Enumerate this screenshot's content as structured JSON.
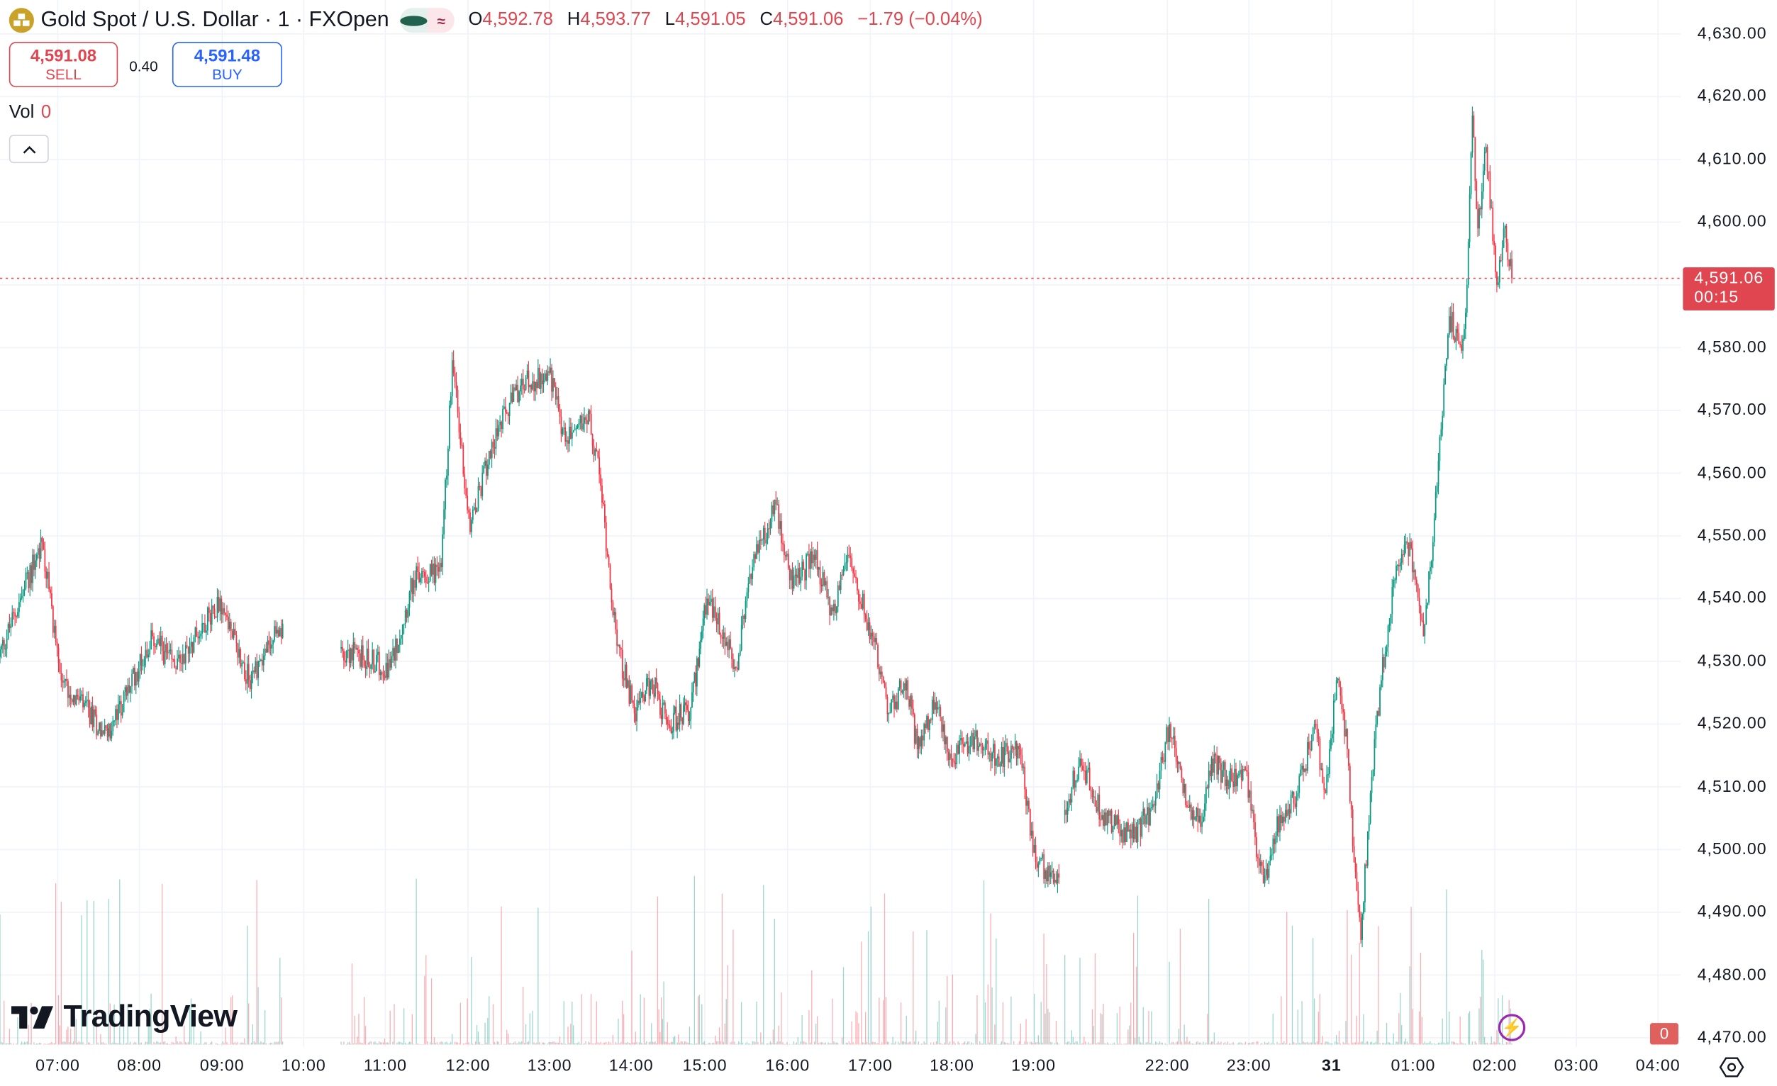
{
  "header": {
    "title": "Gold Spot / U.S. Dollar · 1 · FXOpen",
    "logo_icon": "gold-bars-icon",
    "status_icons": [
      "market-open-dot-icon",
      "delayed-data-icon"
    ],
    "ohlc": {
      "o_label": "O",
      "o": "4,592.78",
      "h_label": "H",
      "h": "4,593.77",
      "l_label": "L",
      "l": "4,591.05",
      "c_label": "C",
      "c": "4,591.06",
      "change": "−1.79 (−0.04%)"
    }
  },
  "trade": {
    "sell_price": "4,591.08",
    "sell_label": "SELL",
    "spread": "0.40",
    "buy_price": "4,591.48",
    "buy_label": "BUY"
  },
  "volume_legend": {
    "label": "Vol",
    "value": "0"
  },
  "branding": {
    "logo_text": "TradingView"
  },
  "colors": {
    "up": "#089981",
    "down": "#f23645",
    "accent_sell": "#e0464f",
    "accent_buy": "#2962ff",
    "logo": "#c9a227"
  },
  "chart_data": {
    "type": "candlestick",
    "symbol": "Gold Spot / U.S. Dollar",
    "interval": "1",
    "ylim": [
      4470,
      4630
    ],
    "grid": true,
    "y_ticks": [
      "4,630.00",
      "4,620.00",
      "4,610.00",
      "4,600.00",
      "4,590.00",
      "4,580.00",
      "4,570.00",
      "4,560.00",
      "4,550.00",
      "4,540.00",
      "4,530.00",
      "4,520.00",
      "4,510.00",
      "4,500.00",
      "4,490.00",
      "4,480.00",
      "4,470.00"
    ],
    "x_ticks": [
      "07:00",
      "08:00",
      "09:00",
      "10:00",
      "11:00",
      "12:00",
      "13:00",
      "14:00",
      "15:00",
      "16:00",
      "17:00",
      "18:00",
      "19:00",
      "22:00",
      "23:00",
      "31",
      "01:00",
      "02:00",
      "03:00",
      "04:00"
    ],
    "last_price": "4,591.06",
    "countdown": "00:15",
    "volume_last": "0",
    "price_path": [
      [
        "06:17",
        4530.7
      ],
      [
        "06:36",
        4541.6
      ],
      [
        "06:49",
        4549
      ],
      [
        "07:03",
        4527
      ],
      [
        "07:37",
        4518
      ],
      [
        "08:10",
        4534
      ],
      [
        "08:26",
        4529
      ],
      [
        "08:59",
        4540
      ],
      [
        "09:20",
        4527
      ],
      [
        "09:45",
        4536
      ],
      [
        "10:27",
        4532
      ],
      [
        "11:04",
        4529
      ],
      [
        "11:21",
        4543
      ],
      [
        "11:41",
        4545
      ],
      [
        "11:49",
        4578
      ],
      [
        "12:02",
        4550.6
      ],
      [
        "12:18",
        4565
      ],
      [
        "12:39",
        4574
      ],
      [
        "13:00",
        4576
      ],
      [
        "13:12",
        4565
      ],
      [
        "13:29",
        4570
      ],
      [
        "13:38",
        4558
      ],
      [
        "13:50",
        4532.5
      ],
      [
        "14:03",
        4521.7
      ],
      [
        "14:17",
        4527
      ],
      [
        "14:30",
        4520
      ],
      [
        "14:49",
        4522.6
      ],
      [
        "15:02",
        4540
      ],
      [
        "15:23",
        4529
      ],
      [
        "15:35",
        4545
      ],
      [
        "15:52",
        4555
      ],
      [
        "16:04",
        4541.6
      ],
      [
        "16:19",
        4547
      ],
      [
        "16:33",
        4538
      ],
      [
        "16:44",
        4547
      ],
      [
        "17:02",
        4534
      ],
      [
        "17:14",
        4521.7
      ],
      [
        "17:27",
        4527
      ],
      [
        "17:35",
        4516
      ],
      [
        "17:48",
        4523.5
      ],
      [
        "18:00",
        4514.5
      ],
      [
        "18:17",
        4518
      ],
      [
        "18:33",
        4514.5
      ],
      [
        "18:50",
        4516
      ],
      [
        "19:02",
        4498
      ],
      [
        "19:19",
        4495.5
      ],
      [
        "20:45",
        4505.5
      ],
      [
        "20:57",
        4514.5
      ],
      [
        "21:13",
        4505.5
      ],
      [
        "21:34",
        4501.8
      ],
      [
        "21:51",
        4507
      ],
      [
        "22:02",
        4520
      ],
      [
        "22:12",
        4509
      ],
      [
        "22:25",
        4503.6
      ],
      [
        "22:33",
        4514.5
      ],
      [
        "22:46",
        4511
      ],
      [
        "22:58",
        4512.7
      ],
      [
        "23:05",
        4502
      ],
      [
        "23:11",
        4494.6
      ],
      [
        "23:23",
        4505.5
      ],
      [
        "23:36",
        4509
      ],
      [
        "23:48",
        4520
      ],
      [
        "23:56",
        4509
      ],
      [
        "00:04",
        4527
      ],
      [
        "00:12",
        4516
      ],
      [
        "00:17",
        4498
      ],
      [
        "00:22",
        4485.6
      ],
      [
        "00:29",
        4509
      ],
      [
        "00:37",
        4527
      ],
      [
        "00:46",
        4543
      ],
      [
        "00:58",
        4549
      ],
      [
        "01:08",
        4534
      ],
      [
        "01:15",
        4549
      ],
      [
        "01:21",
        4567
      ],
      [
        "01:27",
        4585
      ],
      [
        "01:36",
        4579.5
      ],
      [
        "01:40",
        4590
      ],
      [
        "01:44",
        4617
      ],
      [
        "01:48",
        4599
      ],
      [
        "01:54",
        4612
      ],
      [
        "02:02",
        4590
      ],
      [
        "02:07",
        4599
      ],
      [
        "02:13",
        4591.06
      ]
    ]
  },
  "controls": {
    "collapse_icon": "chevron-up-icon",
    "settings_icon": "settings-icon",
    "bolt_icon": "lightning-icon"
  }
}
